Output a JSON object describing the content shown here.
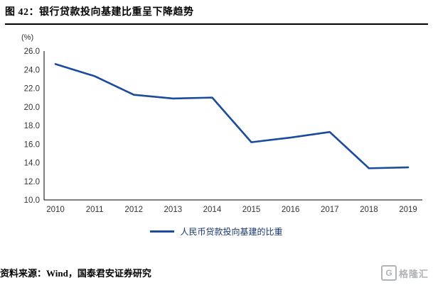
{
  "title": "图 42：银行贷款投向基建比重呈下降趋势",
  "unit_label": "(%)",
  "legend": "人民币贷款投向基建的比重",
  "source": "资料来源：Wind，国泰君安证券研究",
  "logo_text": "格隆汇",
  "logo_mark": "G",
  "colors": {
    "line": "#1b4c9c",
    "axis": "#000000",
    "tick_text": "#333333",
    "legend_text": "#17366e",
    "logo": "#b0b3b8"
  },
  "chart_data": {
    "type": "line",
    "x": [
      2010,
      2011,
      2012,
      2013,
      2014,
      2015,
      2016,
      2017,
      2018,
      2019
    ],
    "series": [
      {
        "name": "人民币贷款投向基建的比重",
        "values": [
          24.6,
          23.3,
          21.3,
          20.9,
          21.0,
          16.2,
          16.7,
          17.3,
          13.4,
          13.5
        ]
      }
    ],
    "title": "图 42：银行贷款投向基建比重呈下降趋势",
    "xlabel": "",
    "ylabel": "(%)",
    "ylim": [
      10.0,
      26.0
    ],
    "ytick_step": 2.0,
    "grid": false,
    "legend_position": "bottom"
  }
}
